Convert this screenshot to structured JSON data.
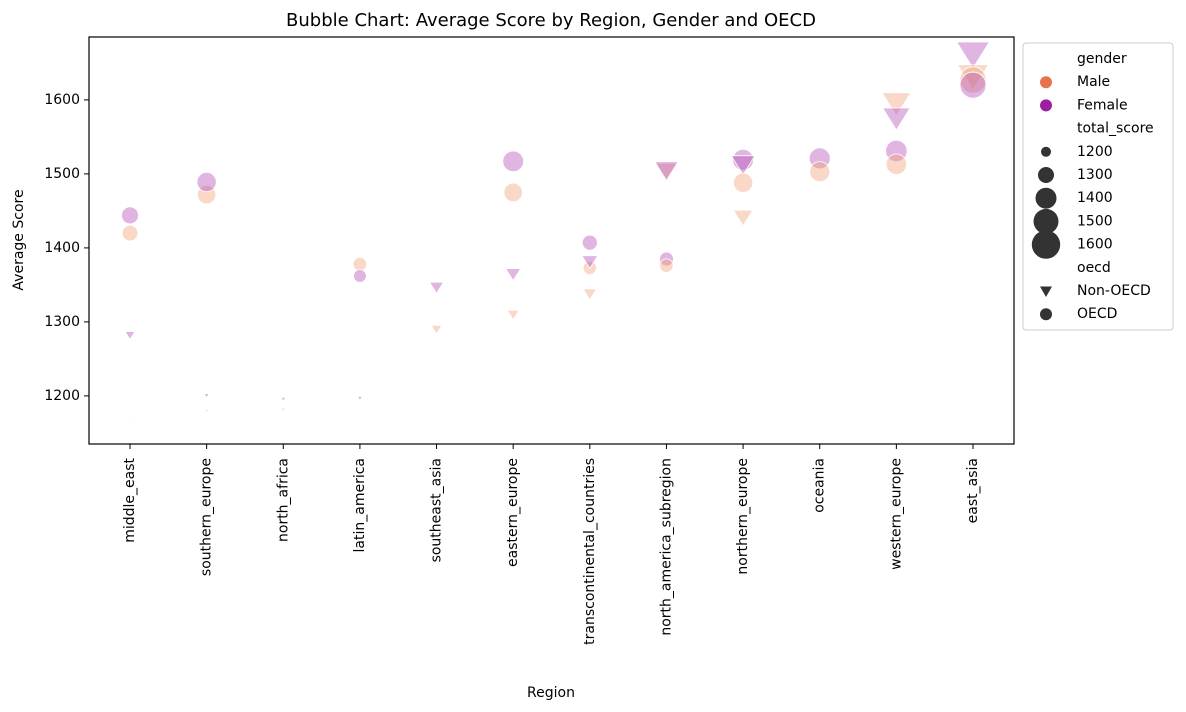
{
  "chart_data": {
    "type": "scatter",
    "title": "Bubble Chart: Average Score by Region, Gender and OECD",
    "xlabel": "Region",
    "ylabel": "Average Score",
    "categories": [
      "middle_east",
      "southern_europe",
      "north_africa",
      "latin_america",
      "southeast_asia",
      "eastern_europe",
      "transcontinental_countries",
      "north_america_subregion",
      "northern_europe",
      "oceania",
      "western_europe",
      "east_asia"
    ],
    "ylim": [
      1135,
      1685
    ],
    "yticks": [
      1200,
      1300,
      1400,
      1500,
      1600
    ],
    "grid": false,
    "legend_placement": "outside-right",
    "colors": {
      "Male": "#f0a27a",
      "Female": "#b44fb8",
      "legend_Male": "#e8734a",
      "legend_Female": "#9b1fa0"
    },
    "points": [
      {
        "x": "middle_east",
        "gender": "Male",
        "oecd": "OECD",
        "y": 1420,
        "total_score": 1420
      },
      {
        "x": "middle_east",
        "gender": "Female",
        "oecd": "OECD",
        "y": 1444,
        "total_score": 1444
      },
      {
        "x": "middle_east",
        "gender": "Female",
        "oecd": "Non-OECD",
        "y": 1283,
        "total_score": 1283
      },
      {
        "x": "middle_east",
        "gender": "Male",
        "oecd": "Non-OECD",
        "y": 1162,
        "total_score": 1162
      },
      {
        "x": "southern_europe",
        "gender": "Male",
        "oecd": "OECD",
        "y": 1472,
        "total_score": 1472
      },
      {
        "x": "southern_europe",
        "gender": "Female",
        "oecd": "OECD",
        "y": 1489,
        "total_score": 1489
      },
      {
        "x": "southern_europe",
        "gender": "Female",
        "oecd": "Non-OECD",
        "y": 1201,
        "total_score": 1201
      },
      {
        "x": "southern_europe",
        "gender": "Male",
        "oecd": "Non-OECD",
        "y": 1180,
        "total_score": 1180
      },
      {
        "x": "north_africa",
        "gender": "Female",
        "oecd": "Non-OECD",
        "y": 1196,
        "total_score": 1196
      },
      {
        "x": "north_africa",
        "gender": "Male",
        "oecd": "Non-OECD",
        "y": 1182,
        "total_score": 1182
      },
      {
        "x": "latin_america",
        "gender": "Male",
        "oecd": "OECD",
        "y": 1378,
        "total_score": 1378
      },
      {
        "x": "latin_america",
        "gender": "Female",
        "oecd": "OECD",
        "y": 1362,
        "total_score": 1362
      },
      {
        "x": "latin_america",
        "gender": "Female",
        "oecd": "Non-OECD",
        "y": 1198,
        "total_score": 1198
      },
      {
        "x": "latin_america",
        "gender": "Male",
        "oecd": "Non-OECD",
        "y": 1197,
        "total_score": 1197
      },
      {
        "x": "southeast_asia",
        "gender": "Female",
        "oecd": "Non-OECD",
        "y": 1348,
        "total_score": 1348
      },
      {
        "x": "southeast_asia",
        "gender": "Male",
        "oecd": "Non-OECD",
        "y": 1291,
        "total_score": 1291
      },
      {
        "x": "eastern_europe",
        "gender": "Female",
        "oecd": "OECD",
        "y": 1517,
        "total_score": 1517
      },
      {
        "x": "eastern_europe",
        "gender": "Male",
        "oecd": "OECD",
        "y": 1475,
        "total_score": 1475
      },
      {
        "x": "eastern_europe",
        "gender": "Female",
        "oecd": "Non-OECD",
        "y": 1366,
        "total_score": 1366
      },
      {
        "x": "eastern_europe",
        "gender": "Male",
        "oecd": "Non-OECD",
        "y": 1311,
        "total_score": 1311
      },
      {
        "x": "transcontinental_countries",
        "gender": "Female",
        "oecd": "OECD",
        "y": 1407,
        "total_score": 1407
      },
      {
        "x": "transcontinental_countries",
        "gender": "Male",
        "oecd": "OECD",
        "y": 1373,
        "total_score": 1373
      },
      {
        "x": "transcontinental_countries",
        "gender": "Female",
        "oecd": "Non-OECD",
        "y": 1383,
        "total_score": 1383
      },
      {
        "x": "transcontinental_countries",
        "gender": "Male",
        "oecd": "Non-OECD",
        "y": 1339,
        "total_score": 1339
      },
      {
        "x": "north_america_subregion",
        "gender": "Male",
        "oecd": "Non-OECD",
        "y": 1505,
        "total_score": 1505
      },
      {
        "x": "north_america_subregion",
        "gender": "Female",
        "oecd": "Non-OECD",
        "y": 1507,
        "total_score": 1507
      },
      {
        "x": "north_america_subregion",
        "gender": "Female",
        "oecd": "OECD",
        "y": 1385,
        "total_score": 1385
      },
      {
        "x": "north_america_subregion",
        "gender": "Male",
        "oecd": "OECD",
        "y": 1376,
        "total_score": 1376
      },
      {
        "x": "northern_europe",
        "gender": "Female",
        "oecd": "OECD",
        "y": 1519,
        "total_score": 1519
      },
      {
        "x": "northern_europe",
        "gender": "Female",
        "oecd": "Non-OECD",
        "y": 1515,
        "total_score": 1515
      },
      {
        "x": "northern_europe",
        "gender": "Male",
        "oecd": "OECD",
        "y": 1488,
        "total_score": 1488
      },
      {
        "x": "northern_europe",
        "gender": "Male",
        "oecd": "Non-OECD",
        "y": 1443,
        "total_score": 1443
      },
      {
        "x": "oceania",
        "gender": "Female",
        "oecd": "OECD",
        "y": 1521,
        "total_score": 1521
      },
      {
        "x": "oceania",
        "gender": "Male",
        "oecd": "OECD",
        "y": 1503,
        "total_score": 1503
      },
      {
        "x": "western_europe",
        "gender": "Male",
        "oecd": "Non-OECD",
        "y": 1598,
        "total_score": 1598
      },
      {
        "x": "western_europe",
        "gender": "Female",
        "oecd": "Non-OECD",
        "y": 1578,
        "total_score": 1578
      },
      {
        "x": "western_europe",
        "gender": "Female",
        "oecd": "OECD",
        "y": 1531,
        "total_score": 1531
      },
      {
        "x": "western_europe",
        "gender": "Male",
        "oecd": "OECD",
        "y": 1513,
        "total_score": 1513
      },
      {
        "x": "east_asia",
        "gender": "Female",
        "oecd": "Non-OECD",
        "y": 1665,
        "total_score": 1665
      },
      {
        "x": "east_asia",
        "gender": "Male",
        "oecd": "Non-OECD",
        "y": 1635,
        "total_score": 1635
      },
      {
        "x": "east_asia",
        "gender": "Male",
        "oecd": "OECD",
        "y": 1627,
        "total_score": 1627
      },
      {
        "x": "east_asia",
        "gender": "Female",
        "oecd": "OECD",
        "y": 1620,
        "total_score": 1620
      }
    ],
    "legend": {
      "hue_title": "gender",
      "hue_entries": [
        "Male",
        "Female"
      ],
      "size_title": "total_score",
      "size_entries": [
        1200,
        1300,
        1400,
        1500,
        1600
      ],
      "style_title": "oecd",
      "style_entries": [
        "Non-OECD",
        "OECD"
      ]
    }
  }
}
